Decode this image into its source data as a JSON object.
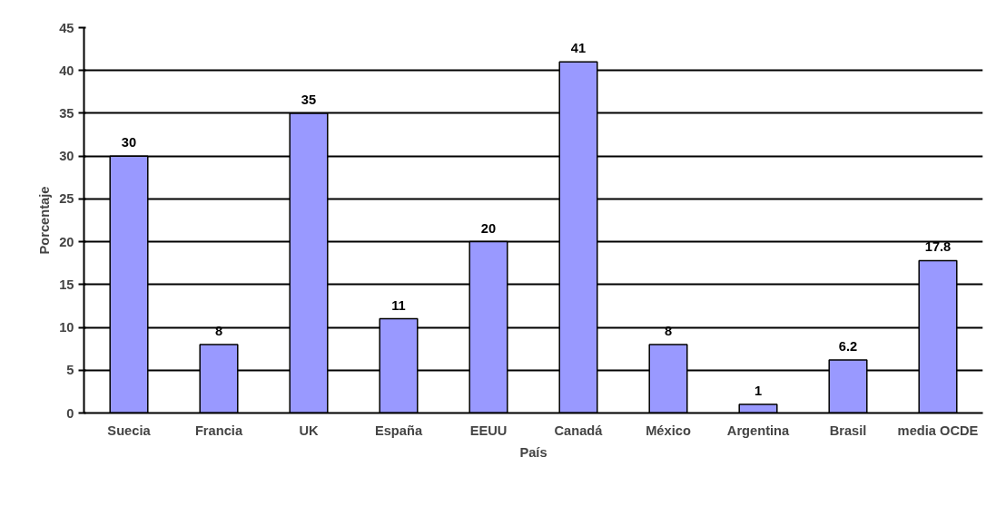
{
  "chart_data": {
    "type": "bar",
    "xlabel": "País",
    "ylabel": "Porcentaje",
    "categories": [
      "Suecia",
      "Francia",
      "UK",
      "España",
      "EEUU",
      "Canadá",
      "México",
      "Argentina",
      "Brasil",
      "media OCDE"
    ],
    "values": [
      30,
      8,
      35,
      11,
      20,
      41,
      8,
      1,
      6.2,
      17.8
    ],
    "color": "#9999ff",
    "ylim": [
      0,
      45
    ],
    "yticks": [
      0,
      5,
      10,
      15,
      20,
      25,
      30,
      35,
      40,
      45
    ],
    "grid": "y",
    "data_labels": true
  }
}
